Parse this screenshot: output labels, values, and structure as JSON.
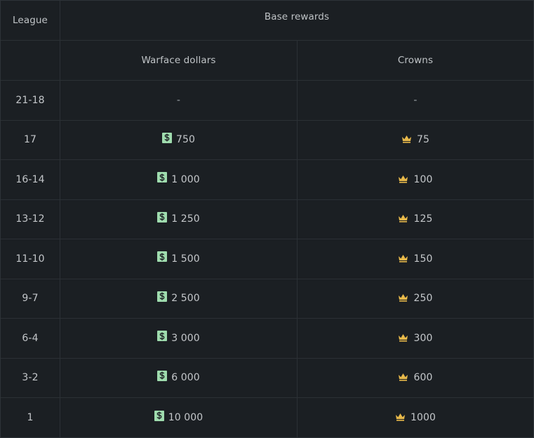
{
  "header": {
    "league_label": "League",
    "base_rewards_label": "Base rewards",
    "dollars_label": "Warface dollars",
    "crowns_label": "Crowns"
  },
  "colors": {
    "background": "#1b1f23",
    "dollar_icon": "#9fdcae",
    "crown_icon": "#e8b94a",
    "text": "#c3c6c9"
  },
  "icons": {
    "dollar": "dollar-icon",
    "crown": "crown-icon"
  },
  "rows": [
    {
      "league": "21-18",
      "dollars": "-",
      "crowns": "-"
    },
    {
      "league": "17",
      "dollars": "750",
      "crowns": "75"
    },
    {
      "league": "16-14",
      "dollars": "1 000",
      "crowns": "100"
    },
    {
      "league": "13-12",
      "dollars": "1 250",
      "crowns": "125"
    },
    {
      "league": "11-10",
      "dollars": "1 500",
      "crowns": "150"
    },
    {
      "league": "9-7",
      "dollars": "2 500",
      "crowns": "250"
    },
    {
      "league": "6-4",
      "dollars": "3 000",
      "crowns": "300"
    },
    {
      "league": "3-2",
      "dollars": "6 000",
      "crowns": "600"
    },
    {
      "league": "1",
      "dollars": "10 000",
      "crowns": "1000"
    }
  ]
}
